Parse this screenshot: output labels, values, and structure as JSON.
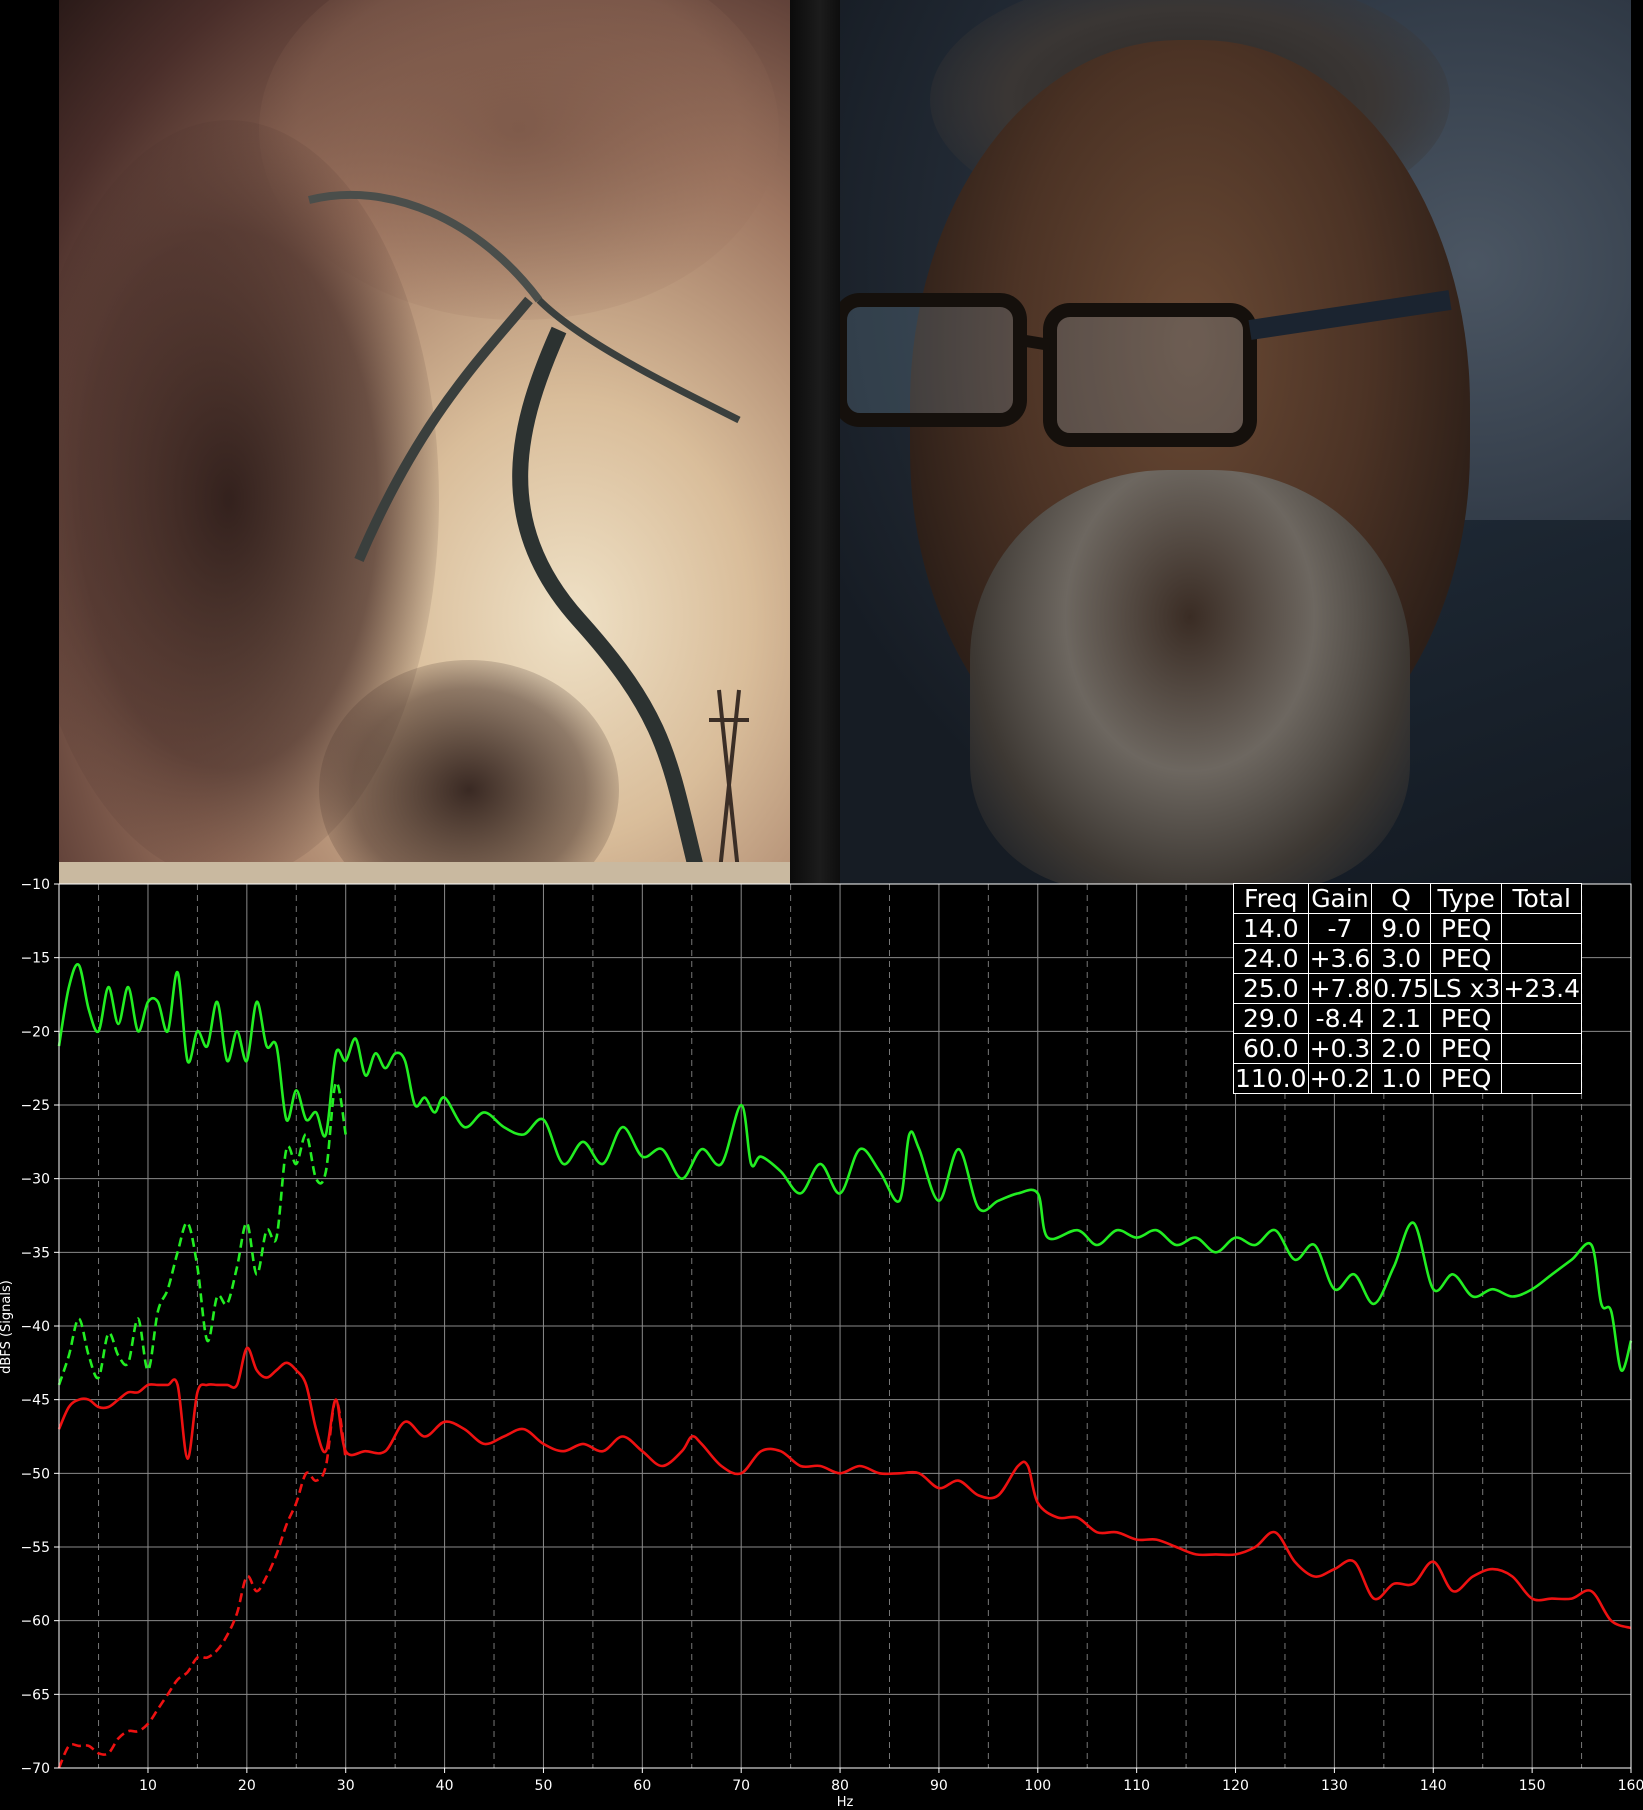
{
  "eq_table": {
    "headers": [
      "Freq",
      "Gain",
      "Q",
      "Type",
      "Total"
    ],
    "rows": [
      [
        "14.0",
        "-7",
        "9.0",
        "PEQ",
        ""
      ],
      [
        "24.0",
        "+3.6",
        "3.0",
        "PEQ",
        ""
      ],
      [
        "25.0",
        "+7.8",
        "0.75",
        "LS x3",
        "+23.4"
      ],
      [
        "29.0",
        "-8.4",
        "2.1",
        "PEQ",
        ""
      ],
      [
        "60.0",
        "+0.3",
        "2.0",
        "PEQ",
        ""
      ],
      [
        "110.0",
        "+0.2",
        "1.0",
        "PEQ",
        ""
      ]
    ]
  },
  "chart_data": {
    "type": "line",
    "xlabel": "Hz",
    "ylabel": "dBFS (Signals)",
    "xlim": [
      1,
      160
    ],
    "ylim": [
      -70,
      -10
    ],
    "xticks": [
      10,
      20,
      30,
      40,
      50,
      60,
      70,
      80,
      90,
      100,
      110,
      120,
      130,
      140,
      150,
      160
    ],
    "yticks": [
      -10,
      -15,
      -20,
      -25,
      -30,
      -35,
      -40,
      -45,
      -50,
      -55,
      -60,
      -65,
      -70
    ],
    "grid": true,
    "series": [
      {
        "color": "#22ee22",
        "style": "solid",
        "x": [
          1,
          2,
          3,
          4,
          5,
          6,
          7,
          8,
          9,
          10,
          11,
          12,
          13,
          14,
          15,
          16,
          17,
          18,
          19,
          20,
          21,
          22,
          23,
          24,
          25,
          26,
          27,
          28,
          29,
          30,
          31,
          32,
          33,
          34,
          35,
          36,
          37,
          38,
          39,
          40,
          42,
          44,
          46,
          48,
          50,
          52,
          54,
          56,
          58,
          60,
          62,
          64,
          66,
          68,
          70,
          71,
          72,
          74,
          76,
          78,
          80,
          82,
          84,
          86,
          87,
          88,
          90,
          92,
          94,
          96,
          98,
          100,
          101,
          104,
          106,
          108,
          110,
          112,
          114,
          116,
          118,
          120,
          122,
          124,
          126,
          128,
          130,
          132,
          134,
          136,
          138,
          140,
          142,
          144,
          146,
          148,
          150,
          152,
          154,
          156,
          157,
          158,
          159,
          160
        ],
        "y": [
          -21,
          -17,
          -15.5,
          -18.5,
          -20,
          -17,
          -19.5,
          -17,
          -20,
          -18,
          -18,
          -20,
          -16,
          -22,
          -20,
          -21,
          -18,
          -22,
          -20,
          -22,
          -18,
          -21,
          -21,
          -26,
          -24,
          -26,
          -25.5,
          -27,
          -21.5,
          -22,
          -20.5,
          -23,
          -21.5,
          -22.5,
          -21.5,
          -22,
          -25,
          -24.5,
          -25.5,
          -24.5,
          -26.5,
          -25.5,
          -26.5,
          -27,
          -26,
          -29,
          -27.5,
          -29,
          -26.5,
          -28.5,
          -28,
          -30,
          -28,
          -29,
          -25,
          -29,
          -28.5,
          -29.5,
          -31,
          -29,
          -31,
          -28,
          -29.5,
          -31.5,
          -27,
          -28,
          -31.5,
          -28,
          -32,
          -31.5,
          -31,
          -31,
          -34,
          -33.5,
          -34.5,
          -33.5,
          -34,
          -33.5,
          -34.5,
          -34,
          -35,
          -34,
          -34.5,
          -33.5,
          -35.5,
          -34.5,
          -37.5,
          -36.5,
          -38.5,
          -36,
          -33,
          -37.5,
          -36.5,
          -38,
          -37.5,
          -38,
          -37.5,
          -36.5,
          -35.5,
          -34.5,
          -38.5,
          -39,
          -43,
          -41
        ]
      },
      {
        "color": "#22ee22",
        "style": "dashed",
        "x": [
          1,
          2,
          3,
          4,
          5,
          6,
          7,
          8,
          9,
          10,
          11,
          12,
          13,
          14,
          15,
          16,
          17,
          18,
          19,
          20,
          21,
          22,
          23,
          24,
          25,
          26,
          27,
          28,
          29,
          30
        ],
        "y": [
          -44,
          -42,
          -39.5,
          -42,
          -43.5,
          -40.5,
          -42,
          -42.5,
          -39.5,
          -43,
          -39,
          -37.5,
          -35,
          -33,
          -36,
          -41,
          -38,
          -38.5,
          -36,
          -33,
          -36.5,
          -33.5,
          -34,
          -28,
          -29,
          -27,
          -30,
          -29.5,
          -23.5,
          -27
        ]
      },
      {
        "color": "#ee1111",
        "style": "solid",
        "x": [
          1,
          2,
          3,
          4,
          5,
          6,
          7,
          8,
          9,
          10,
          11,
          12,
          13,
          14,
          15,
          16,
          17,
          18,
          19,
          20,
          21,
          22,
          23,
          24,
          25,
          26,
          27,
          28,
          29,
          30,
          32,
          34,
          36,
          38,
          40,
          42,
          44,
          46,
          48,
          50,
          52,
          54,
          56,
          58,
          60,
          62,
          64,
          65,
          66,
          68,
          70,
          72,
          74,
          76,
          78,
          80,
          82,
          84,
          86,
          88,
          90,
          92,
          94,
          96,
          98,
          99,
          100,
          102,
          104,
          106,
          108,
          110,
          112,
          114,
          116,
          118,
          120,
          122,
          124,
          126,
          128,
          130,
          132,
          134,
          136,
          138,
          140,
          142,
          144,
          146,
          148,
          150,
          152,
          154,
          156,
          158,
          160
        ],
        "y": [
          -47,
          -45.5,
          -45,
          -45,
          -45.5,
          -45.5,
          -45,
          -44.5,
          -44.5,
          -44,
          -44,
          -44,
          -44,
          -49,
          -44.5,
          -44,
          -44,
          -44,
          -44,
          -41.5,
          -43,
          -43.5,
          -43,
          -42.5,
          -43,
          -44,
          -47,
          -48.5,
          -45,
          -48.5,
          -48.5,
          -48.5,
          -46.5,
          -47.5,
          -46.5,
          -47,
          -48,
          -47.5,
          -47,
          -48,
          -48.5,
          -48,
          -48.5,
          -47.5,
          -48.5,
          -49.5,
          -48.5,
          -47.5,
          -48,
          -49.5,
          -50,
          -48.5,
          -48.5,
          -49.5,
          -49.5,
          -50,
          -49.5,
          -50,
          -50,
          -50,
          -51,
          -50.5,
          -51.5,
          -51.5,
          -49.5,
          -49.5,
          -52,
          -53,
          -53,
          -54,
          -54,
          -54.5,
          -54.5,
          -55,
          -55.5,
          -55.5,
          -55.5,
          -55,
          -54,
          -56,
          -57,
          -56.5,
          -56,
          -58.5,
          -57.5,
          -57.5,
          -56,
          -58,
          -57,
          -56.5,
          -57,
          -58.5,
          -58.5,
          -58.5,
          -58,
          -60,
          -60.5
        ]
      },
      {
        "color": "#ee1111",
        "style": "dashed",
        "x": [
          1,
          2,
          3,
          4,
          5,
          6,
          7,
          8,
          9,
          10,
          11,
          12,
          13,
          14,
          15,
          16,
          17,
          18,
          19,
          20,
          21,
          22,
          23,
          24,
          25,
          26,
          27,
          28,
          29,
          30
        ],
        "y": [
          -70,
          -68.5,
          -68.5,
          -68.5,
          -69,
          -69,
          -68,
          -67.5,
          -67.5,
          -67,
          -66,
          -65,
          -64,
          -63.5,
          -62.5,
          -62.5,
          -62,
          -61,
          -59.5,
          -57,
          -58,
          -57,
          -55.5,
          -53.5,
          -52,
          -50,
          -50.5,
          -49.5,
          -45,
          -49
        ]
      }
    ]
  }
}
